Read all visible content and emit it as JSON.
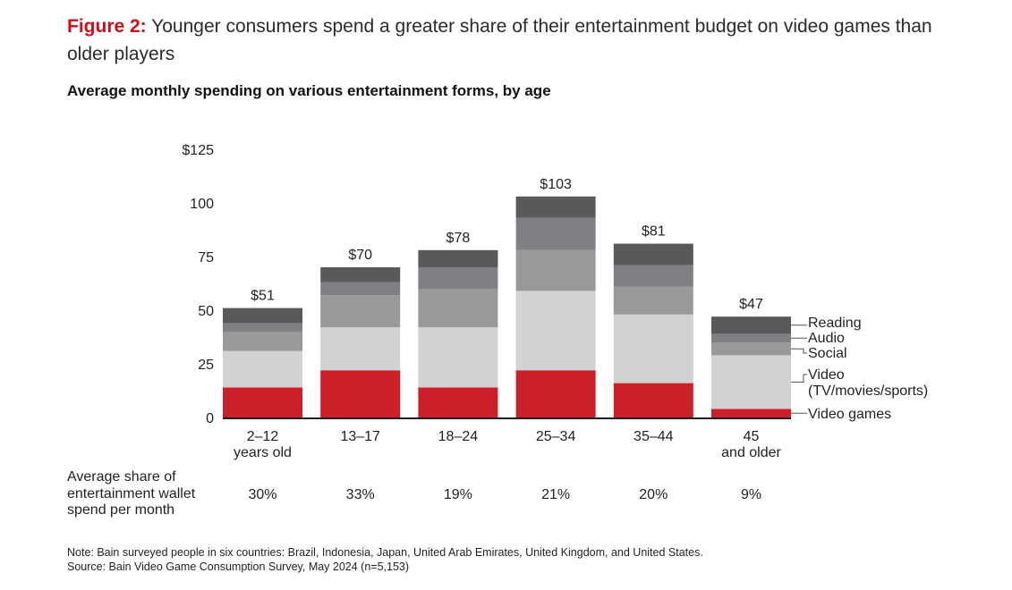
{
  "header": {
    "figure_label": "Figure 2:",
    "title": " Younger consumers spend a greater share of their entertainment budget on video games than older players",
    "subtitle": "Average monthly spending on various entertainment forms, by age"
  },
  "chart_data": {
    "type": "bar",
    "stacked": true,
    "title": "Average monthly spending on various entertainment forms, by age",
    "xlabel": "",
    "ylabel": "",
    "ylim": [
      0,
      125
    ],
    "yticks": [
      0,
      25,
      50,
      75,
      100,
      125
    ],
    "ytick_labels": [
      "0",
      "25",
      "50",
      "75",
      "100",
      "$125"
    ],
    "grid": false,
    "categories": [
      {
        "id": "2-12",
        "lines": [
          "2–12",
          "years old"
        ]
      },
      {
        "id": "13-17",
        "lines": [
          "13–17"
        ]
      },
      {
        "id": "18-24",
        "lines": [
          "18–24"
        ]
      },
      {
        "id": "25-34",
        "lines": [
          "25–34"
        ]
      },
      {
        "id": "35-44",
        "lines": [
          "35–44"
        ]
      },
      {
        "id": "45+",
        "lines": [
          "45",
          "and older"
        ]
      }
    ],
    "series": [
      {
        "name": "Video games",
        "color": "#cc2028",
        "values": [
          14,
          22,
          14,
          22,
          16,
          4
        ]
      },
      {
        "name": "Video (TV/movies/sports)",
        "color": "#d1d2d4",
        "values": [
          17,
          20,
          28,
          37,
          32,
          25
        ]
      },
      {
        "name": "Social",
        "color": "#999999",
        "values": [
          9,
          15,
          18,
          19,
          13,
          6
        ]
      },
      {
        "name": "Audio",
        "color": "#7f8084",
        "values": [
          4,
          6,
          10,
          15,
          10,
          4
        ]
      },
      {
        "name": "Reading",
        "color": "#58595b",
        "values": [
          7,
          7,
          8,
          10,
          10,
          8
        ]
      }
    ],
    "totals": [
      51,
      70,
      78,
      103,
      81,
      47
    ],
    "total_labels": [
      "$51",
      "$70",
      "$78",
      "$103",
      "$81",
      "$47"
    ],
    "legend": {
      "placement": "right",
      "entries": [
        {
          "series": "Reading",
          "lines": [
            "Reading"
          ]
        },
        {
          "series": "Audio",
          "lines": [
            "Audio"
          ]
        },
        {
          "series": "Social",
          "lines": [
            "Social"
          ]
        },
        {
          "series": "Video (TV/movies/sports)",
          "lines": [
            "Video",
            "(TV/movies/sports)"
          ]
        },
        {
          "series": "Video games",
          "lines": [
            "Video games"
          ]
        }
      ]
    }
  },
  "share_row": {
    "label": "Average share of entertainment wallet spend per month",
    "label_lines": [
      "Average share of",
      "entertainment wallet",
      "spend per month"
    ],
    "values": [
      "30%",
      "33%",
      "19%",
      "21%",
      "20%",
      "9%"
    ]
  },
  "footer": {
    "note": "Note: Bain surveyed people in six countries: Brazil, Indonesia, Japan, United Arab Emirates, United Kingdom, and United States.",
    "source": "Source: Bain Video Game Consumption Survey, May 2024 (n=5,153)"
  }
}
